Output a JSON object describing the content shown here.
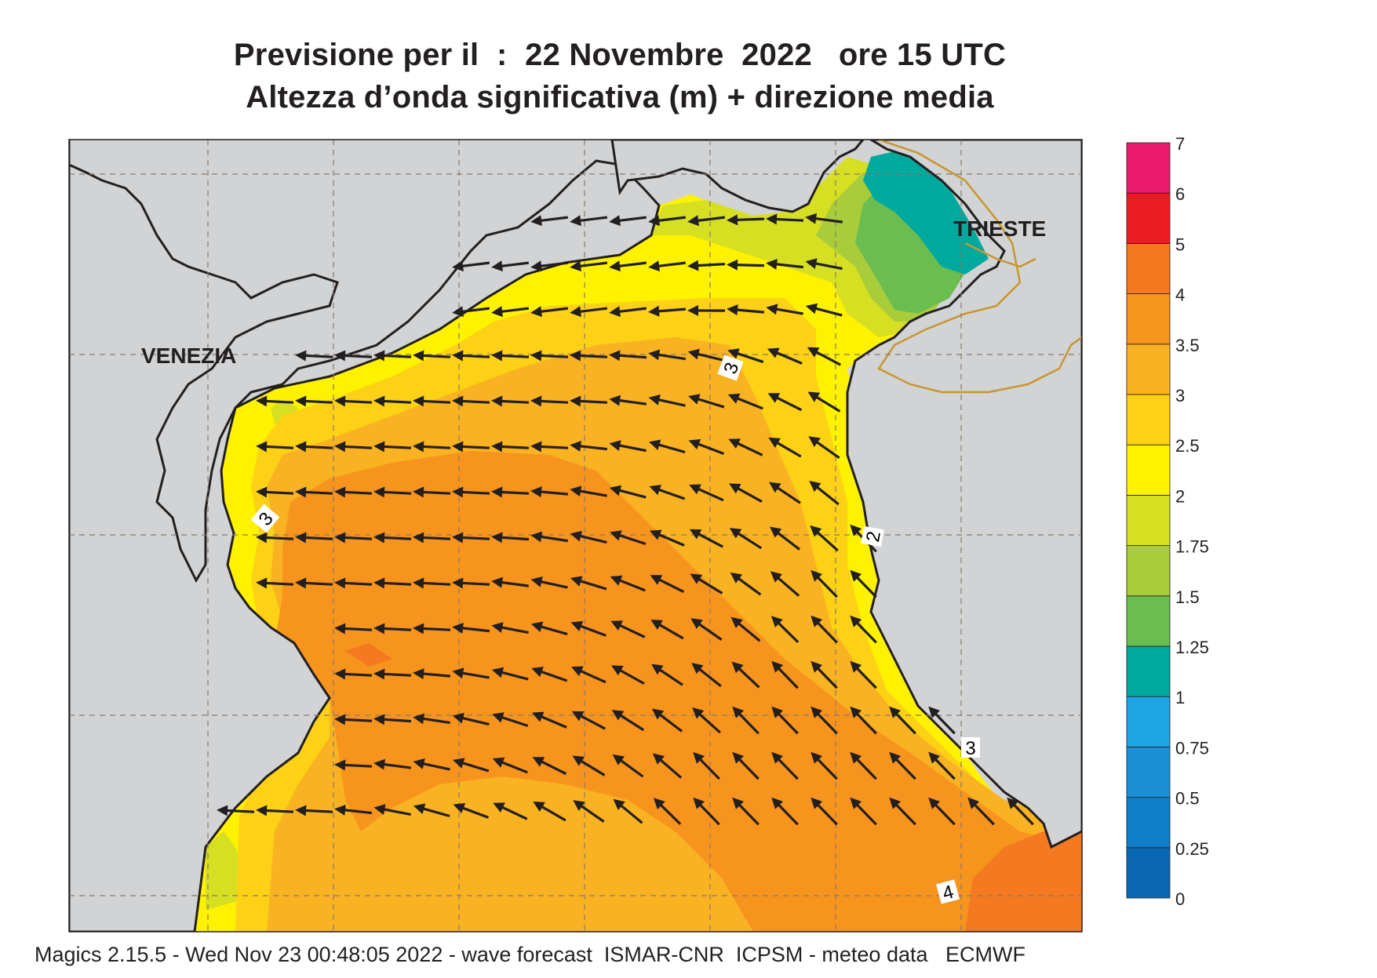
{
  "title": {
    "line1": "Previsione per il  :  22 Novembre  2022   ore 15 UTC",
    "line2": "Altezza d’onda significativa (m) + direzione media"
  },
  "map": {
    "cities": [
      {
        "name": "VENEZIA"
      },
      {
        "name": "TRIESTE"
      }
    ],
    "contour_labels": [
      "3",
      "3",
      "2",
      "3",
      "4"
    ],
    "land_color": "#d1d3d4",
    "coast_color": "#231f20",
    "border_color": "#c8962e",
    "arrow_color": "#231f20",
    "mean_wave_direction": "arrows pointing toward the west / north-west"
  },
  "colorbar": {
    "levels": [
      "0",
      "0.25",
      "0.5",
      "0.75",
      "1",
      "1.25",
      "1.5",
      "1.75",
      "2",
      "2.5",
      "3",
      "3.5",
      "4",
      "5",
      "6",
      "7"
    ],
    "colors": [
      "#0a67b2",
      "#0f7dc8",
      "#1a8fd6",
      "#1ea5e3",
      "#00a99d",
      "#6bbd50",
      "#a9cc3a",
      "#d7df23",
      "#fff200",
      "#fcd116",
      "#f9b221",
      "#f7941d",
      "#f47920",
      "#ed1c24",
      "#ec1a6b"
    ]
  },
  "footer": "Magics 2.15.5 - Wed Nov 23 00:48:05 2022 - wave forecast  ISMAR-CNR  ICPSM - meteo data   ECMWF"
}
